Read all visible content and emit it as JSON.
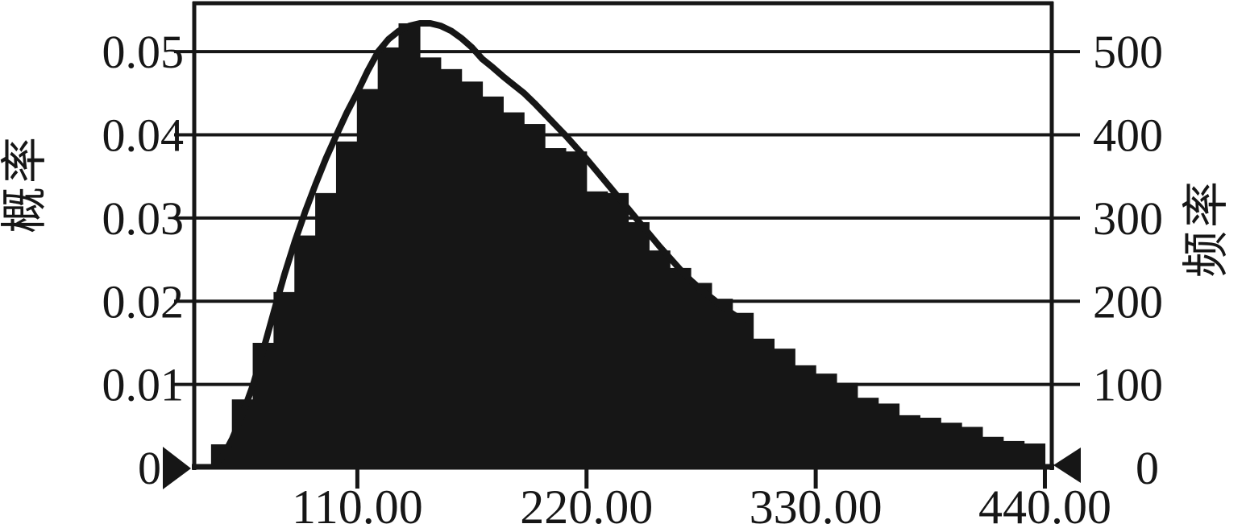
{
  "chart": {
    "left_axis_label": "概率",
    "right_axis_label": "频率",
    "left_ticks": [
      "0.05",
      "0.04",
      "0.03",
      "0.02",
      "0.01",
      "0"
    ],
    "right_ticks": [
      "500",
      "400",
      "300",
      "200",
      "100",
      "0"
    ],
    "x_ticks": [
      "110.00",
      "220.00",
      "330.00",
      "440.00"
    ]
  },
  "chart_data": {
    "type": "bar",
    "subtype": "histogram-with-fitted-curve",
    "title": "",
    "xlabel": "",
    "ylabel_left": "概率",
    "ylabel_right": "频率",
    "grid": "horizontal",
    "legend": "none",
    "bar_color": "#161616",
    "curve_color": "#161616",
    "xlim": [
      31.7,
      443.3
    ],
    "ylim_probability": [
      0,
      0.0563
    ],
    "ylim_frequency": [
      0,
      563
    ],
    "x_tick_values": [
      110,
      220,
      330,
      440
    ],
    "left_tick_values": [
      0.05,
      0.04,
      0.03,
      0.02,
      0.01,
      0
    ],
    "right_tick_values": [
      500,
      400,
      300,
      200,
      100,
      0
    ],
    "bin_start": 40,
    "bin_width": 10,
    "bar_probabilities": [
      0.0028,
      0.0082,
      0.015,
      0.0211,
      0.0279,
      0.033,
      0.0392,
      0.0455,
      0.0505,
      0.0534,
      0.0493,
      0.0479,
      0.0464,
      0.0446,
      0.0427,
      0.0413,
      0.0384,
      0.038,
      0.0332,
      0.033,
      0.0295,
      0.0261,
      0.024,
      0.0222,
      0.0203,
      0.0186,
      0.0155,
      0.0143,
      0.0123,
      0.0113,
      0.0102,
      0.0084,
      0.0077,
      0.0063,
      0.006,
      0.0054,
      0.0049,
      0.0037,
      0.0032,
      0.0029
    ],
    "bar_frequencies": [
      28,
      82,
      150,
      211,
      279,
      330,
      392,
      455,
      505,
      534,
      493,
      479,
      464,
      446,
      427,
      413,
      384,
      380,
      332,
      330,
      295,
      261,
      240,
      222,
      203,
      186,
      155,
      143,
      123,
      113,
      102,
      84,
      77,
      63,
      60,
      54,
      49,
      37,
      32,
      29
    ],
    "fit_curve_points": [
      [
        42,
        0.0004
      ],
      [
        46,
        0.0016
      ],
      [
        50,
        0.0035
      ],
      [
        55,
        0.0065
      ],
      [
        60,
        0.01
      ],
      [
        65,
        0.0143
      ],
      [
        70,
        0.0188
      ],
      [
        75,
        0.0232
      ],
      [
        80,
        0.0272
      ],
      [
        85,
        0.0308
      ],
      [
        90,
        0.0341
      ],
      [
        95,
        0.0372
      ],
      [
        100,
        0.04
      ],
      [
        105,
        0.0427
      ],
      [
        110,
        0.0451
      ],
      [
        115,
        0.0477
      ],
      [
        120,
        0.05
      ],
      [
        125,
        0.0515
      ],
      [
        130,
        0.0525
      ],
      [
        135,
        0.0531
      ],
      [
        140,
        0.0534
      ],
      [
        145,
        0.0534
      ],
      [
        150,
        0.0531
      ],
      [
        155,
        0.0525
      ],
      [
        160,
        0.0516
      ],
      [
        165,
        0.0505
      ],
      [
        170,
        0.0491
      ],
      [
        175,
        0.0481
      ],
      [
        180,
        0.047
      ],
      [
        185,
        0.046
      ],
      [
        190,
        0.045
      ],
      [
        195,
        0.0438
      ],
      [
        200,
        0.0425
      ],
      [
        205,
        0.0412
      ],
      [
        210,
        0.0399
      ],
      [
        215,
        0.0385
      ],
      [
        220,
        0.0371
      ],
      [
        225,
        0.0356
      ],
      [
        230,
        0.0341
      ],
      [
        235,
        0.0326
      ],
      [
        240,
        0.0311
      ],
      [
        245,
        0.0296
      ],
      [
        250,
        0.0281
      ],
      [
        255,
        0.0266
      ],
      [
        260,
        0.0252
      ],
      [
        265,
        0.0238
      ],
      [
        270,
        0.0225
      ],
      [
        275,
        0.0214
      ],
      [
        280,
        0.0204
      ],
      [
        285,
        0.0194
      ],
      [
        290,
        0.0185
      ],
      [
        295,
        0.0177
      ]
    ],
    "range_markers": {
      "left_triangle_value": 0,
      "right_triangle_value": 0,
      "left_points": "right",
      "right_points": "left"
    }
  }
}
